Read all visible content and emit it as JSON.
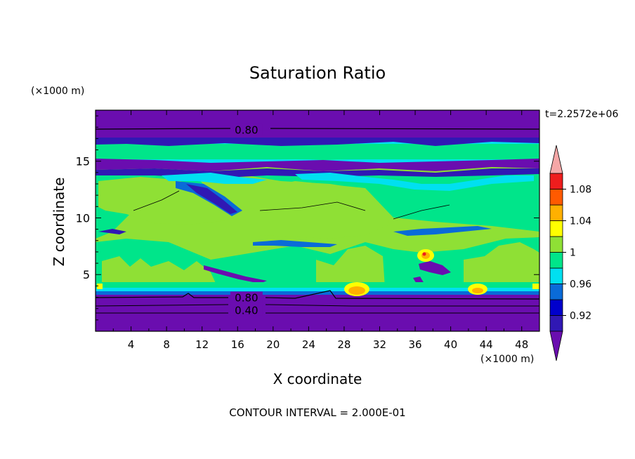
{
  "chart_data": {
    "type": "heatmap",
    "title": "Saturation Ratio",
    "xlabel": "X coordinate",
    "ylabel": "Z coordinate",
    "x_unit": "(×1000 m)",
    "y_unit": "(×1000 m)",
    "time_label": "t=2.2572e+06",
    "footer": "CONTOUR INTERVAL = 2.000E-01",
    "xlim": [
      0,
      50
    ],
    "ylim": [
      0,
      19.5
    ],
    "x_ticks": [
      4,
      8,
      12,
      16,
      20,
      24,
      28,
      32,
      36,
      40,
      44,
      48
    ],
    "y_ticks": [
      5,
      10,
      15
    ],
    "contour_labels": [
      {
        "text": "0.80",
        "x": 17,
        "y": 17.8
      },
      {
        "text": "0.80",
        "x": 17,
        "y": 3.0
      },
      {
        "text": "0.40",
        "x": 17,
        "y": 1.9
      }
    ],
    "colorbar": {
      "levels": [
        0.9,
        0.92,
        0.94,
        0.96,
        0.98,
        1.0,
        1.02,
        1.04,
        1.06,
        1.08,
        1.1
      ],
      "tick_labels": [
        "0.92",
        "0.96",
        "1",
        "1.04",
        "1.08"
      ],
      "colors": [
        "#6a0daf",
        "#3018b4",
        "#0000cc",
        "#0a6bd8",
        "#00e0f0",
        "#00e58a",
        "#8fe035",
        "#ffff00",
        "#ffb000",
        "#ff5a00",
        "#ee1d1d",
        "#f5a7a7"
      ]
    }
  }
}
